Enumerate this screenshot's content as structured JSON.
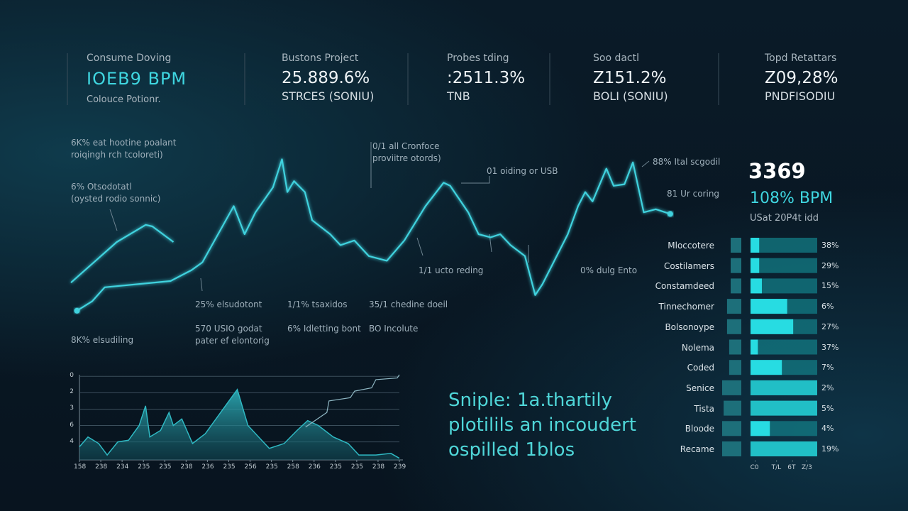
{
  "kpis": [
    {
      "label": "Consume Doving",
      "value": "IOEB9 BPM",
      "sub": "Colouce Potionr."
    },
    {
      "label": "Bustons Project",
      "value": "25.889.6%",
      "sub": "STRCES (SONIU)"
    },
    {
      "label": "Probes tding",
      "value": ":2511.3%",
      "sub": "TNB"
    },
    {
      "label": "Soo dactl",
      "value": "Z151.2%",
      "sub": "BOLI (SONIU)"
    },
    {
      "label": "Topd Retattars",
      "value": "Z09,28%",
      "sub": "PNDFISODIU"
    }
  ],
  "annotations": [
    "6K% eat hootine poalant",
    "roiqingh rch tcoloreti)",
    "6% Otsodotatl",
    "(oysted rodio sonnic)",
    "0/1 all Cronfoce",
    "proviitre otords)",
    "01 oiding or USB",
    "88% Ital scgodil",
    "81 Ur coring",
    "1/1 ucto reding",
    "0% dulg Ento",
    "25% elsudotont",
    "1/1% tsaxidos",
    "35/1 chedine doeil",
    "570 USIO godat",
    "pater ef elontorig",
    "6% Idletting bont",
    "BO Incolute",
    "8K% elsudiling"
  ],
  "side_stat": {
    "value": "3369",
    "rate": "108% BPM",
    "note": "USat 20P4t idd"
  },
  "caption": [
    "Sniple: 1a.thartily",
    "plotilils an incoudert",
    "ospilled 1blos"
  ],
  "chart_data": [
    {
      "type": "line",
      "xlim": [
        0,
        100
      ],
      "ylim": [
        0,
        100
      ],
      "series": [
        {
          "color": "#3fd2de",
          "x": [
            0,
            3.5,
            7.6,
            12.4,
            13.5,
            17
          ],
          "values": [
            19,
            31,
            45,
            56,
            55,
            45
          ]
        },
        {
          "color": "#3fd2de",
          "x": [
            1,
            3.5,
            5.6,
            16.5,
            20,
            21.8,
            27,
            28.8,
            30.6,
            33.5,
            35,
            35.9,
            37,
            38.8,
            40,
            43,
            44.7,
            47,
            49.4,
            52.4,
            55.3,
            58.8,
            61.8,
            62.9,
            65.9,
            67.6,
            69.6,
            71.2,
            72.9,
            75.3,
            77,
            78.2,
            82.4,
            84.1,
            85.3,
            86.5,
            88.8,
            90,
            91.8,
            93.2,
            94.1,
            95,
            97,
            99.4
          ],
          "values": [
            1,
            7,
            16,
            20,
            27,
            32,
            68,
            50,
            64,
            80,
            98,
            77,
            84,
            77,
            59,
            50,
            43,
            46,
            36,
            33,
            46,
            68,
            83,
            81,
            64,
            50,
            48,
            50,
            43,
            36,
            11,
            18,
            50,
            68,
            77,
            71,
            92,
            81,
            82,
            96,
            80,
            64,
            66,
            63
          ]
        }
      ]
    },
    {
      "type": "area",
      "xlim": [
        0,
        15
      ],
      "ylim": [
        -1.1,
        4.1
      ],
      "yticks": [
        {
          "value": 4,
          "label": "0"
        },
        {
          "value": 3,
          "label": "2"
        },
        {
          "value": 2,
          "label": "3"
        },
        {
          "value": 1,
          "label": "6"
        },
        {
          "value": 0,
          "label": "4"
        }
      ],
      "xticks": [
        {
          "value": 0,
          "label": "158"
        },
        {
          "value": 1,
          "label": "238"
        },
        {
          "value": 2,
          "label": "234"
        },
        {
          "value": 3,
          "label": "235"
        },
        {
          "value": 4,
          "label": "235"
        },
        {
          "value": 5,
          "label": "238"
        },
        {
          "value": 6,
          "label": "236"
        },
        {
          "value": 7,
          "label": "235"
        },
        {
          "value": 8,
          "label": "256"
        },
        {
          "value": 9,
          "label": "235"
        },
        {
          "value": 10,
          "label": "258"
        },
        {
          "value": 11,
          "label": "236"
        },
        {
          "value": 12,
          "label": "235"
        },
        {
          "value": 13,
          "label": "235"
        },
        {
          "value": 14,
          "label": "238"
        },
        {
          "value": 15,
          "label": "239"
        }
      ],
      "series": [
        {
          "color": "#2fb8c2",
          "x": [
            0,
            0.4,
            0.9,
            1.3,
            1.8,
            2.3,
            2.8,
            3.1,
            3.3,
            3.8,
            4.2,
            4.4,
            4.8,
            5.3,
            5.9,
            6.4,
            6.9,
            7.4,
            7.9,
            8.4,
            8.9,
            9.6,
            10.2,
            10.7,
            11.2,
            11.9,
            12.6,
            13.1,
            13.9,
            14.6,
            15
          ],
          "values": [
            -0.3,
            0.3,
            -0.1,
            -0.8,
            0,
            0.1,
            1,
            2.2,
            0.3,
            0.7,
            1.8,
            1,
            1.4,
            -0.1,
            0.5,
            1.4,
            2.3,
            3.2,
            1,
            0.3,
            -0.4,
            -0.1,
            0.7,
            1.3,
            1,
            0.3,
            -0.1,
            -0.8,
            -0.8,
            -0.7,
            -1
          ]
        },
        {
          "type": "line",
          "color": "#8fb8c4",
          "x": [
            10.6,
            11.6,
            11.7,
            12.7,
            12.9,
            13.7,
            13.9,
            14.9,
            15
          ],
          "values": [
            0.9,
            1.8,
            2.5,
            2.7,
            3.1,
            3.3,
            3.8,
            3.9,
            4.1
          ]
        }
      ]
    },
    {
      "type": "hbar",
      "categories": [
        "Mloccotere",
        "Costilamers",
        "Constamdeed",
        "Tinnechomer",
        "Bolsonoype",
        "Nolema",
        "Coded",
        "Senice",
        "Tista",
        "Bloode",
        "Recame"
      ],
      "xlim": [
        0,
        100
      ],
      "xticks": [
        {
          "value": 7,
          "label": "C0"
        },
        {
          "value": 39,
          "label": "T/L"
        },
        {
          "value": 63,
          "label": "6T"
        },
        {
          "value": 84,
          "label": "Z/3"
        }
      ],
      "percent_labels": [
        "38%",
        "29%",
        "15%",
        "6%",
        "27%",
        "37%",
        "7%",
        "2%",
        "5%",
        "4%",
        "19%"
      ],
      "series": [
        {
          "color": "#1d6f7a",
          "values": [
            50,
            50,
            50,
            67,
            67,
            57,
            57,
            90,
            83,
            90,
            90
          ]
        },
        {
          "color": "#27dce2",
          "values": [
            13,
            13,
            17,
            55,
            64,
            11,
            47,
            100,
            100,
            29,
            100
          ]
        }
      ]
    }
  ]
}
